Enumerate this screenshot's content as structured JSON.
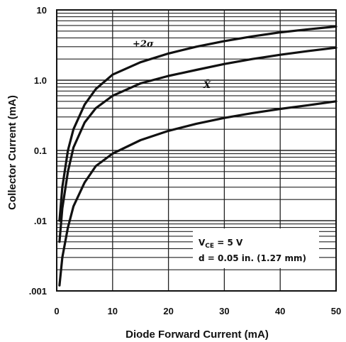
{
  "chart_data": {
    "type": "line",
    "xlabel": "Diode Forward Current (mA)",
    "ylabel": "Collector Current (mA)",
    "xlim": [
      0,
      50
    ],
    "ylim": [
      0.001,
      10
    ],
    "yscale": "log",
    "grid": true,
    "x_ticks": [
      "0",
      "10",
      "20",
      "30",
      "40",
      "50"
    ],
    "y_ticks": [
      ".001",
      ".01",
      "0.1",
      "1.0",
      "10"
    ],
    "series": [
      {
        "name": "+2σ",
        "x": [
          0.5,
          1,
          2,
          3,
          5,
          7,
          10,
          15,
          20,
          25,
          30,
          35,
          40,
          45,
          50
        ],
        "y": [
          0.01,
          0.03,
          0.1,
          0.2,
          0.45,
          0.75,
          1.2,
          1.8,
          2.4,
          3.0,
          3.6,
          4.2,
          4.8,
          5.3,
          5.8
        ]
      },
      {
        "name": "X̄",
        "x": [
          0.5,
          1,
          2,
          3,
          5,
          7,
          10,
          15,
          20,
          25,
          30,
          35,
          40,
          45,
          50
        ],
        "y": [
          0.005,
          0.015,
          0.05,
          0.11,
          0.25,
          0.4,
          0.6,
          0.9,
          1.15,
          1.4,
          1.7,
          2.0,
          2.3,
          2.6,
          2.9
        ]
      },
      {
        "name": "",
        "x": [
          0.5,
          1,
          2,
          3,
          5,
          7,
          10,
          15,
          20,
          25,
          30,
          35,
          40,
          45,
          50
        ],
        "y": [
          0.0012,
          0.003,
          0.008,
          0.016,
          0.035,
          0.06,
          0.09,
          0.14,
          0.19,
          0.24,
          0.29,
          0.34,
          0.39,
          0.44,
          0.5
        ]
      }
    ],
    "annotations": {
      "plus_two_sigma": "+2σ",
      "mean": "X̄",
      "vce_prefix": "V",
      "vce_sub": "CE",
      "vce_value": " = 5 V",
      "distance": "d = 0.05 in. (1.27 mm)"
    }
  }
}
